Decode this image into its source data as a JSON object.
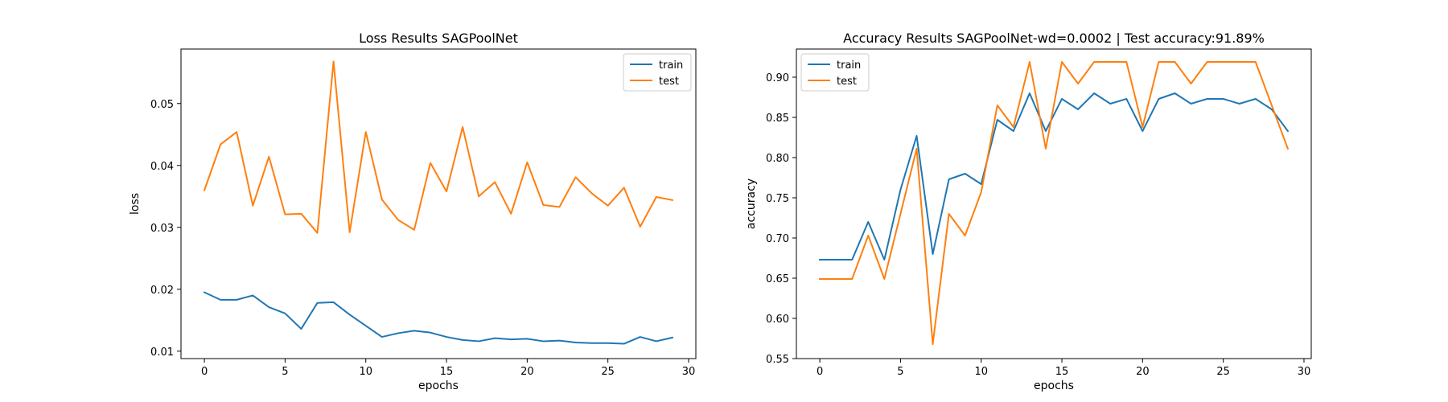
{
  "chart_data": [
    {
      "type": "line",
      "title": "Loss Results SAGPoolNet",
      "xlabel": "epochs",
      "ylabel": "loss",
      "xlim": [
        -1.45,
        30.45
      ],
      "ylim": [
        0.0088,
        0.0588
      ],
      "xticks": [
        0,
        5,
        10,
        15,
        20,
        25,
        30
      ],
      "xtick_labels": [
        "0",
        "5",
        "10",
        "15",
        "20",
        "25",
        "30"
      ],
      "yticks": [
        0.01,
        0.02,
        0.03,
        0.04,
        0.05
      ],
      "ytick_labels": [
        "0.01",
        "0.02",
        "0.03",
        "0.04",
        "0.05"
      ],
      "grid": false,
      "legend_position": "upper right",
      "x": [
        0,
        1,
        2,
        3,
        4,
        5,
        6,
        7,
        8,
        9,
        10,
        11,
        12,
        13,
        14,
        15,
        16,
        17,
        18,
        19,
        20,
        21,
        22,
        23,
        24,
        25,
        26,
        27,
        28,
        29
      ],
      "series": [
        {
          "name": "train",
          "color": "#1f77b4",
          "values": [
            0.0195,
            0.0183,
            0.0183,
            0.019,
            0.0171,
            0.0161,
            0.0136,
            0.0178,
            0.0179,
            0.0159,
            0.0141,
            0.0123,
            0.0129,
            0.0133,
            0.013,
            0.0123,
            0.0118,
            0.0116,
            0.0121,
            0.0119,
            0.012,
            0.0116,
            0.0117,
            0.0114,
            0.0113,
            0.0113,
            0.0112,
            0.0123,
            0.0116,
            0.0122
          ]
        },
        {
          "name": "test",
          "color": "#ff7f0e",
          "values": [
            0.036,
            0.0434,
            0.0454,
            0.0335,
            0.0414,
            0.0321,
            0.0322,
            0.0291,
            0.0568,
            0.0292,
            0.0454,
            0.0345,
            0.0312,
            0.0296,
            0.0404,
            0.0358,
            0.0462,
            0.035,
            0.0373,
            0.0322,
            0.0405,
            0.0336,
            0.0333,
            0.0381,
            0.0355,
            0.0335,
            0.0364,
            0.0301,
            0.0349,
            0.0344
          ]
        }
      ]
    },
    {
      "type": "line",
      "title": "Accuracy Results SAGPoolNet-wd=0.0002 | Test accuracy:91.89%",
      "xlabel": "epochs",
      "ylabel": "accuracy",
      "xlim": [
        -1.45,
        30.45
      ],
      "ylim": [
        0.55,
        0.935
      ],
      "xticks": [
        0,
        5,
        10,
        15,
        20,
        25,
        30
      ],
      "xtick_labels": [
        "0",
        "5",
        "10",
        "15",
        "20",
        "25",
        "30"
      ],
      "yticks": [
        0.55,
        0.6,
        0.65,
        0.7,
        0.75,
        0.8,
        0.85,
        0.9
      ],
      "ytick_labels": [
        "0.55",
        "0.60",
        "0.65",
        "0.70",
        "0.75",
        "0.80",
        "0.85",
        "0.90"
      ],
      "grid": false,
      "legend_position": "upper left",
      "x": [
        0,
        1,
        2,
        3,
        4,
        5,
        6,
        7,
        8,
        9,
        10,
        11,
        12,
        13,
        14,
        15,
        16,
        17,
        18,
        19,
        20,
        21,
        22,
        23,
        24,
        25,
        26,
        27,
        28,
        29
      ],
      "series": [
        {
          "name": "train",
          "color": "#1f77b4",
          "values": [
            0.673,
            0.673,
            0.673,
            0.72,
            0.673,
            0.76,
            0.827,
            0.68,
            0.773,
            0.78,
            0.767,
            0.847,
            0.833,
            0.88,
            0.833,
            0.873,
            0.86,
            0.88,
            0.867,
            0.873,
            0.833,
            0.873,
            0.88,
            0.867,
            0.873,
            0.873,
            0.867,
            0.873,
            0.86,
            0.833
          ]
        },
        {
          "name": "test",
          "color": "#ff7f0e",
          "values": [
            0.649,
            0.649,
            0.649,
            0.703,
            0.649,
            0.73,
            0.811,
            0.568,
            0.73,
            0.703,
            0.757,
            0.865,
            0.838,
            0.919,
            0.811,
            0.919,
            0.892,
            0.919,
            0.919,
            0.919,
            0.838,
            0.919,
            0.919,
            0.892,
            0.919,
            0.919,
            0.919,
            0.919,
            0.865,
            0.811
          ]
        }
      ]
    }
  ]
}
